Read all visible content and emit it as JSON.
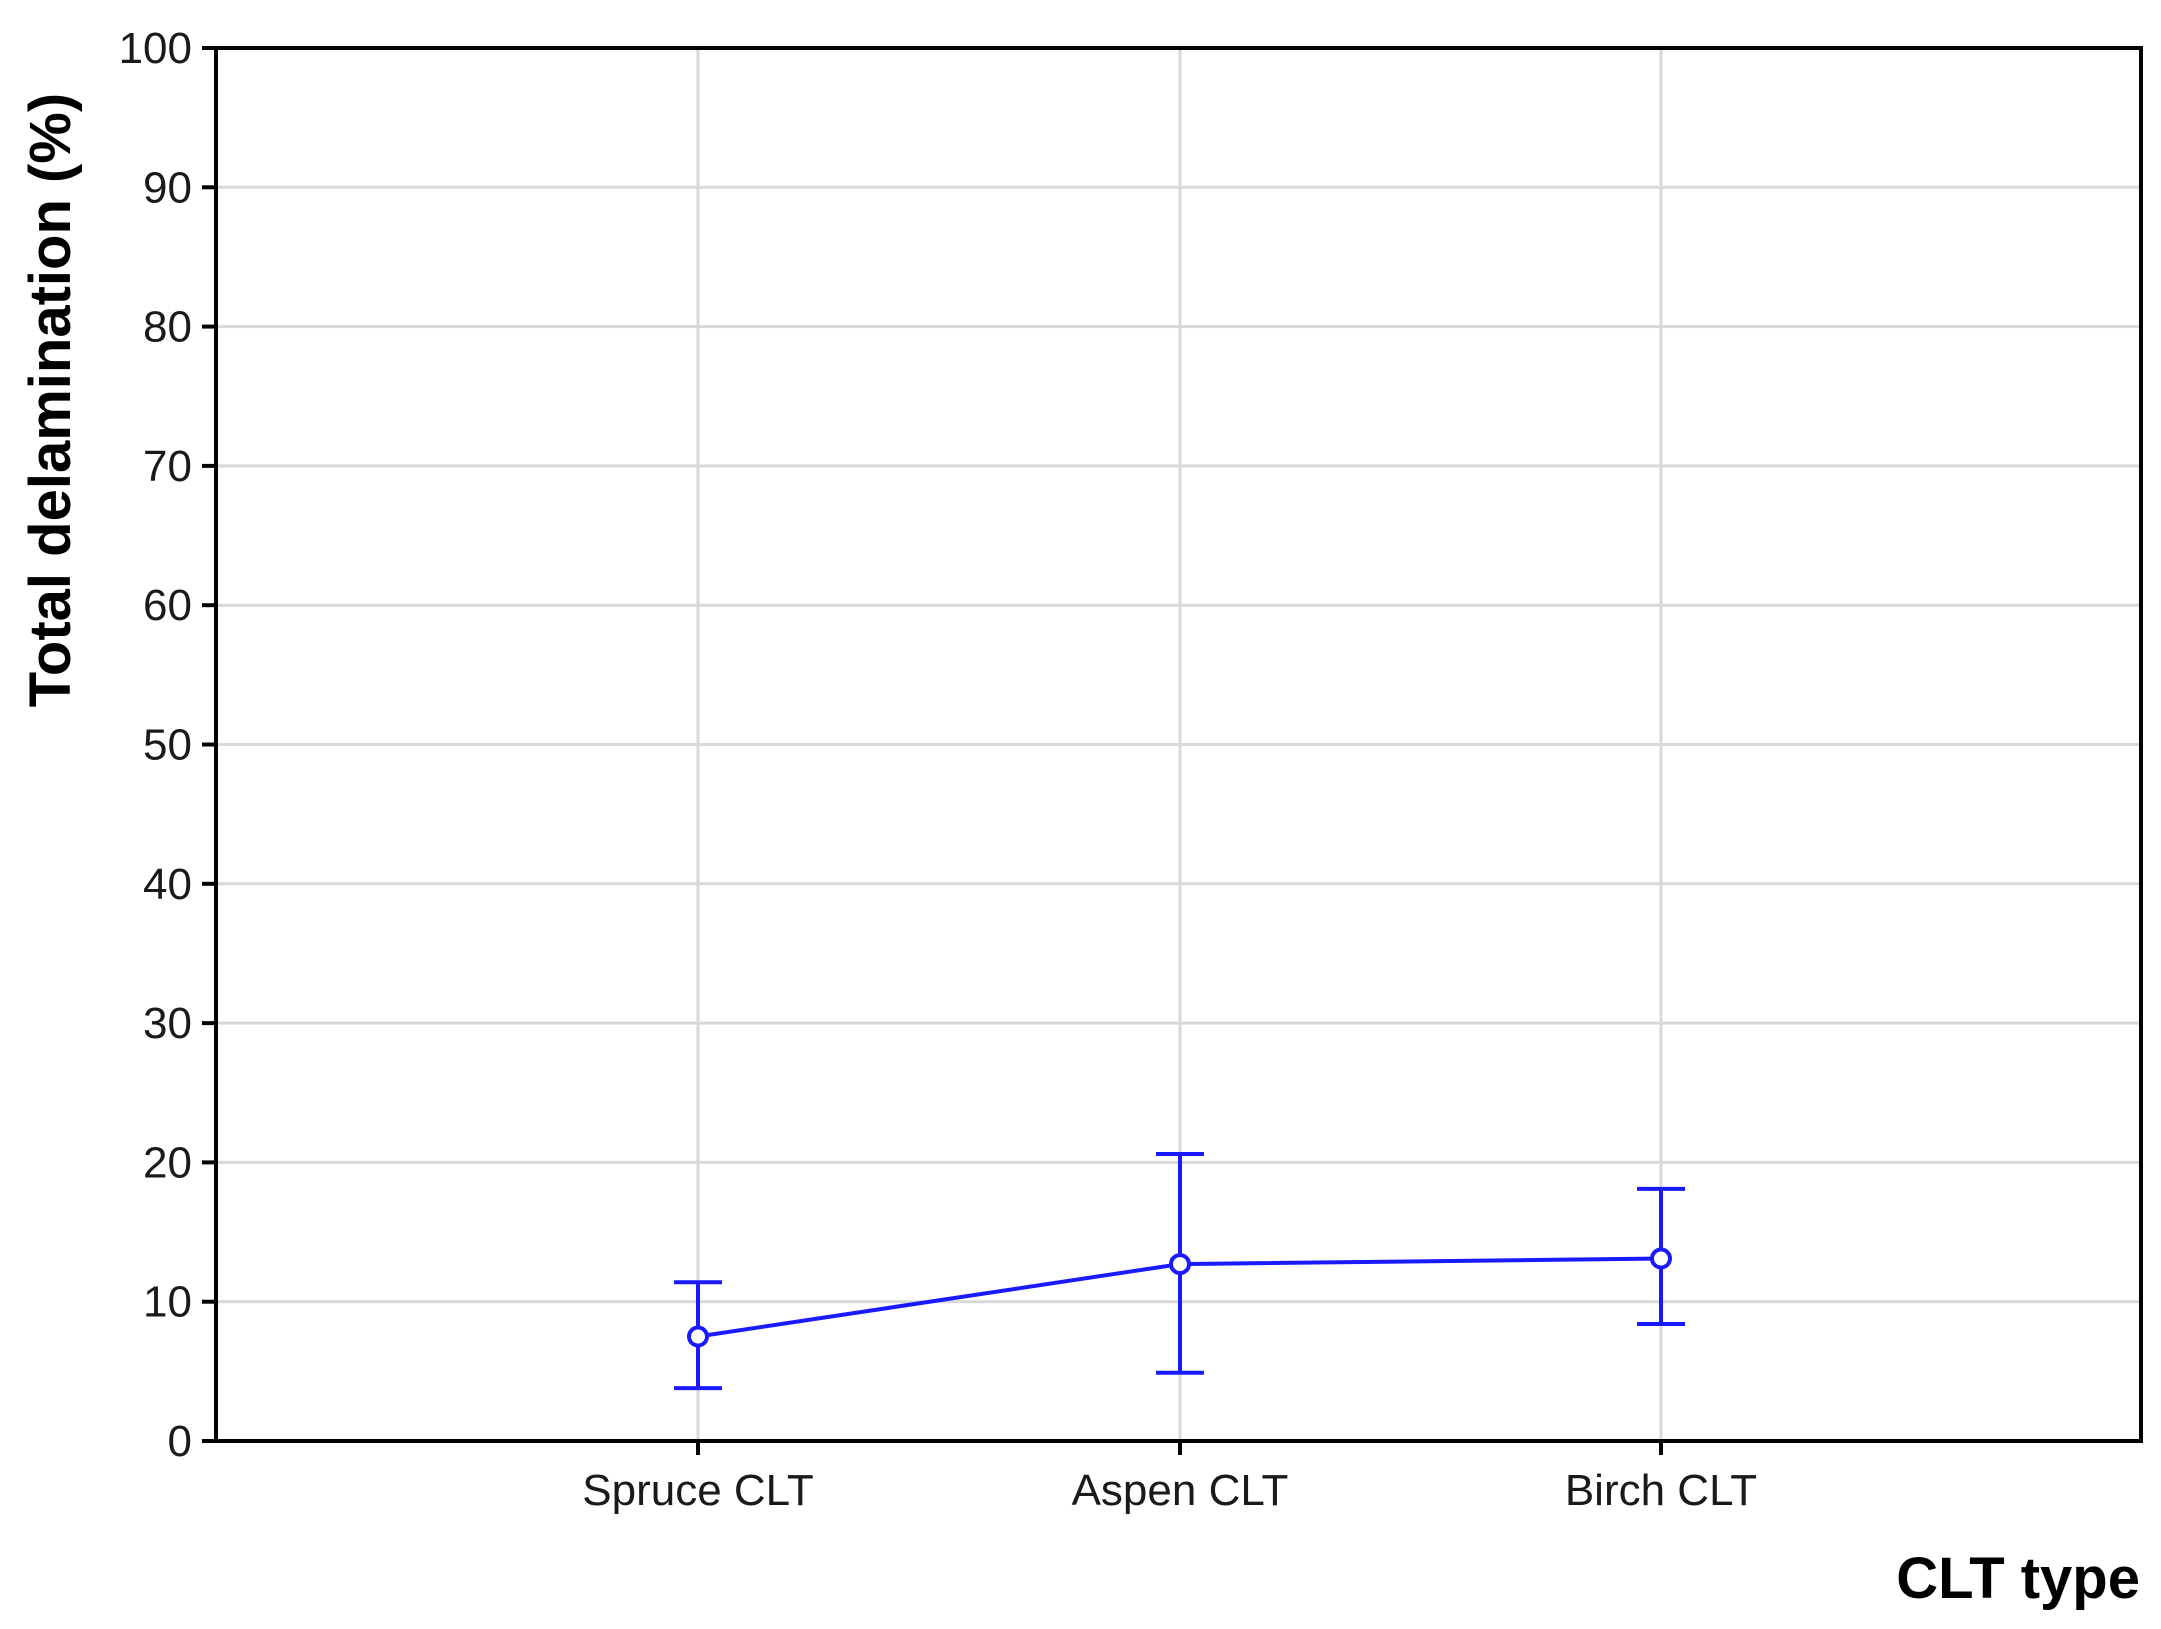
{
  "chart_data": {
    "type": "line",
    "title": "",
    "xlabel": "CLT type",
    "ylabel": "Total delamination  (%)",
    "categories": [
      "Spruce CLT",
      "Aspen CLT",
      "Birch CLT"
    ],
    "series": [
      {
        "values": [
          7.5,
          12.7,
          13.1
        ],
        "error_low": [
          3.8,
          4.9,
          8.4
        ],
        "error_high": [
          11.4,
          20.6,
          18.1
        ],
        "color": "#1a1aff"
      }
    ],
    "ylim": [
      0,
      100
    ],
    "yticks": [
      0,
      10,
      20,
      30,
      40,
      50,
      60,
      70,
      80,
      90,
      100
    ],
    "grid": true,
    "legend": "none"
  }
}
